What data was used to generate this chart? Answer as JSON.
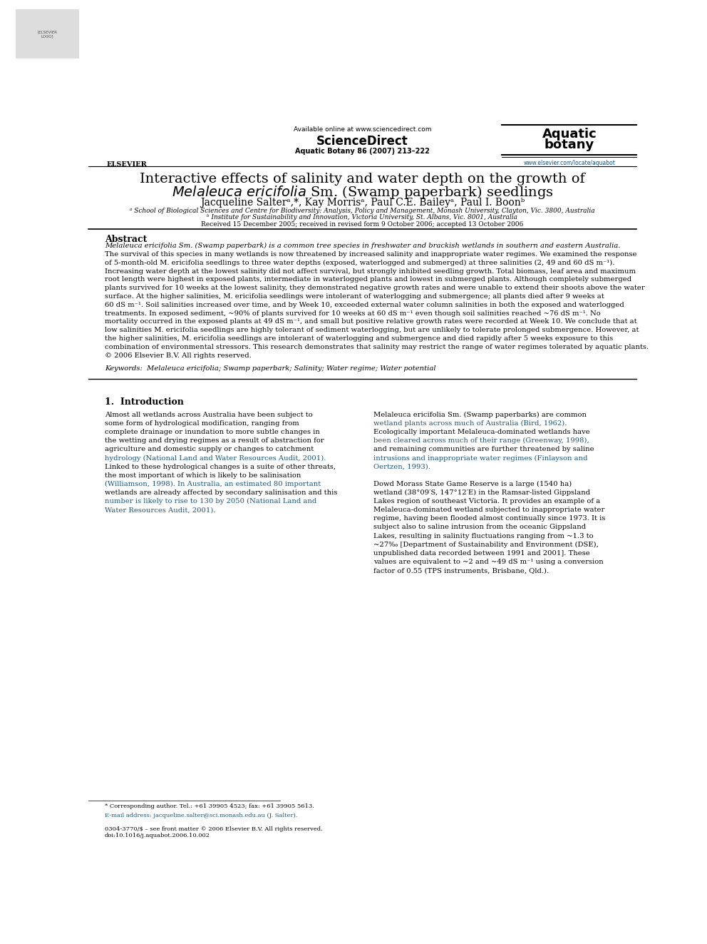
{
  "background_color": "#ffffff",
  "page_width": 9.92,
  "page_height": 13.23,
  "header_available_online": "Available online at www.sciencedirect.com",
  "header_journal_citation": "Aquatic Botany 86 (2007) 213–222",
  "header_journal_name_line1": "Aquatic",
  "header_journal_name_line2": "botany",
  "header_website": "www.elsevier.com/locate/aquabot",
  "header_elsevier_label": "ELSEVIER",
  "title_line1": "Interactive effects of salinity and water depth on the growth of",
  "title_line2_normal": " Sm. (Swamp paperbark) seedlings",
  "title_line2_italic": "Melaleuca ericifolia",
  "authors": "Jacqueline Salterᵃ,*, Kay Morrisᵃ, Paul C.E. Baileyᵃ, Paul I. Boonᵇ",
  "affiliation_a": "ᵃ School of Biological Sciences and Centre for Biodiversity: Analysis, Policy and Management, Monash University, Clayton, Vic. 3800, Australia",
  "affiliation_b": "ᵇ Institute for Sustainability and Innovation, Victoria University, St. Albans, Vic. 8001, Australia",
  "received": "Received 15 December 2005; received in revised form 9 October 2006; accepted 13 October 2006",
  "abstract_heading": "Abstract",
  "abstract_lines": [
    "Melaleuca ericifolia Sm. (Swamp paperbark) is a common tree species in freshwater and brackish wetlands in southern and eastern Australia.",
    "The survival of this species in many wetlands is now threatened by increased salinity and inappropriate water regimes. We examined the response",
    "of 5-month-old M. ericifolia seedlings to three water depths (exposed, waterlogged and submerged) at three salinities (2, 49 and 60 dS m⁻¹).",
    "Increasing water depth at the lowest salinity did not affect survival, but strongly inhibited seedling growth. Total biomass, leaf area and maximum",
    "root length were highest in exposed plants, intermediate in waterlogged plants and lowest in submerged plants. Although completely submerged",
    "plants survived for 10 weeks at the lowest salinity, they demonstrated negative growth rates and were unable to extend their shoots above the water",
    "surface. At the higher salinities, M. ericifolia seedlings were intolerant of waterlogging and submergence; all plants died after 9 weeks at",
    "60 dS m⁻¹. Soil salinities increased over time, and by Week 10, exceeded external water column salinities in both the exposed and waterlogged",
    "treatments. In exposed sediment, ~90% of plants survived for 10 weeks at 60 dS m⁻¹ even though soil salinities reached ~76 dS m⁻¹. No",
    "mortality occurred in the exposed plants at 49 dS m⁻¹, and small but positive relative growth rates were recorded at Week 10. We conclude that at",
    "low salinities M. ericifolia seedlings are highly tolerant of sediment waterlogging, but are unlikely to tolerate prolonged submergence. However, at",
    "the higher salinities, M. ericifolia seedlings are intolerant of waterlogging and submergence and died rapidly after 5 weeks exposure to this",
    "combination of environmental stressors. This research demonstrates that salinity may restrict the range of water regimes tolerated by aquatic plants.",
    "© 2006 Elsevier B.V. All rights reserved."
  ],
  "keywords": "Melaleuca ericifolia; Swamp paperbark; Salinity; Water regime; Water potential",
  "section1_heading": "1.  Introduction",
  "col1_lines": [
    "Almost all wetlands across Australia have been subject to",
    "some form of hydrological modification, ranging from",
    "complete drainage or inundation to more subtle changes in",
    "the wetting and drying regimes as a result of abstraction for",
    "agriculture and domestic supply or changes to catchment",
    "hydrology (National Land and Water Resources Audit, 2001).",
    "Linked to these hydrological changes is a suite of other threats,",
    "the most important of which is likely to be salinisation",
    "(Williamson, 1998). In Australia, an estimated 80 important",
    "wetlands are already affected by secondary salinisation and this",
    "number is likely to rise to 130 by 2050 (National Land and",
    "Water Resources Audit, 2001)."
  ],
  "col1_link_indices": [
    5,
    8,
    10,
    11
  ],
  "col2_lines": [
    "Melaleuca ericifolia Sm. (Swamp paperbarks) are common",
    "wetland plants across much of Australia (Bird, 1962).",
    "Ecologically important Melaleuca-dominated wetlands have",
    "been cleared across much of their range (Greenway, 1998),",
    "and remaining communities are further threatened by saline",
    "intrusions and inappropriate water regimes (Finlayson and",
    "Oertzen, 1993).",
    "",
    "Dowd Morass State Game Reserve is a large (1540 ha)",
    "wetland (38°09′S, 147°12′E) in the Ramsar-listed Gippsland",
    "Lakes region of southeast Victoria. It provides an example of a",
    "Melaleuca-dominated wetland subjected to inappropriate water",
    "regime, having been flooded almost continually since 1973. It is",
    "subject also to saline intrusion from the oceanic Gippsland",
    "Lakes, resulting in salinity fluctuations ranging from ~1.3 to",
    "~27‰ [Department of Sustainability and Environment (DSE),",
    "unpublished data recorded between 1991 and 2001]. These",
    "values are equivalent to ~2 and ~49 dS m⁻¹ using a conversion",
    "factor of 0.55 (TPS instruments, Brisbane, Qld.)."
  ],
  "col2_link_indices": [
    1,
    3,
    5,
    6
  ],
  "footnote_star": "* Corresponding author. Tel.: +61 39905 4523; fax: +61 39905 5613.",
  "footnote_email": "E-mail address: jacqueline.salter@sci.monash.edu.au (J. Salter).",
  "footer_issn": "0304-3770/$ – see front matter © 2006 Elsevier B.V. All rights reserved.",
  "footer_doi": "doi:10.1016/j.aquabot.2006.10.002",
  "link_color": "#1a5276",
  "text_color": "#000000"
}
